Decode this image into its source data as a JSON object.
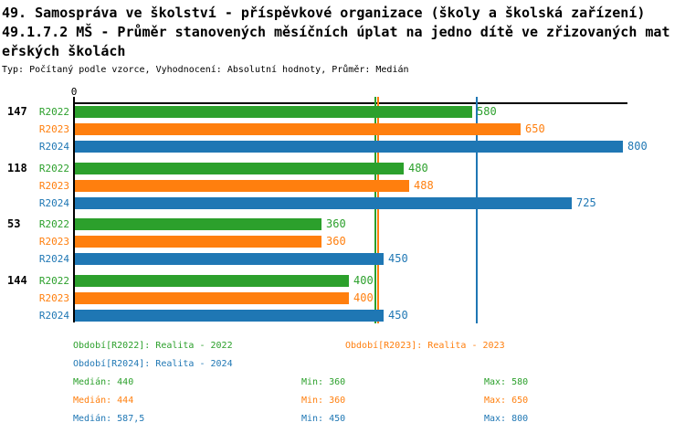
{
  "header": {
    "title_line1": "49. Samospráva ve školství - příspěvkové organizace (školy a školská zařízení)",
    "title_line2": "49.1.7.2 MŠ - Průměr stanovených měsíčních úplat na jedno dítě ve zřizovaných mateřských školách",
    "subtitle": "Typ: Počítaný podle vzorce, Vyhodnocení: Absolutní hodnoty, Průměr: Medián"
  },
  "colors": {
    "series_2022": "#2ca02c",
    "series_2023": "#ff7f0e",
    "series_2024": "#1f77b4",
    "axis": "#000000"
  },
  "chart_data": {
    "type": "bar",
    "orientation": "horizontal",
    "grid": false,
    "x_axis": {
      "origin_tick_label": "0",
      "min": 0,
      "max_visible": 808
    },
    "categories": [
      "147",
      "118",
      "53",
      "144"
    ],
    "series": [
      {
        "name": "R2022",
        "legend": "Realita - 2022",
        "color": "#2ca02c",
        "values": [
          580,
          480,
          360,
          400
        ],
        "median": 440,
        "min": 360,
        "max": 580
      },
      {
        "name": "R2023",
        "legend": "Realita - 2023",
        "color": "#ff7f0e",
        "values": [
          650,
          488,
          360,
          400
        ],
        "median": 444,
        "min": 360,
        "max": 650
      },
      {
        "name": "R2024",
        "legend": "Realita - 2024",
        "color": "#1f77b4",
        "values": [
          800,
          725,
          450,
          450
        ],
        "median": 587.5,
        "min": 450,
        "max": 800
      }
    ],
    "median_lines": [
      440,
      444,
      587.5
    ],
    "legend_position": "bottom"
  },
  "legend": {
    "items": [
      {
        "text": "Období[R2022]: Realita - 2022"
      },
      {
        "text": "Období[R2023]: Realita - 2023"
      },
      {
        "text": "Období[R2024]: Realita - 2024"
      }
    ]
  },
  "stats_rows": [
    {
      "median": "Medián: 440",
      "min": "Min: 360",
      "max": "Max: 580"
    },
    {
      "median": "Medián: 444",
      "min": "Min: 360",
      "max": "Max: 650"
    },
    {
      "median": "Medián: 587,5",
      "min": "Min: 450",
      "max": "Max: 800"
    }
  ]
}
